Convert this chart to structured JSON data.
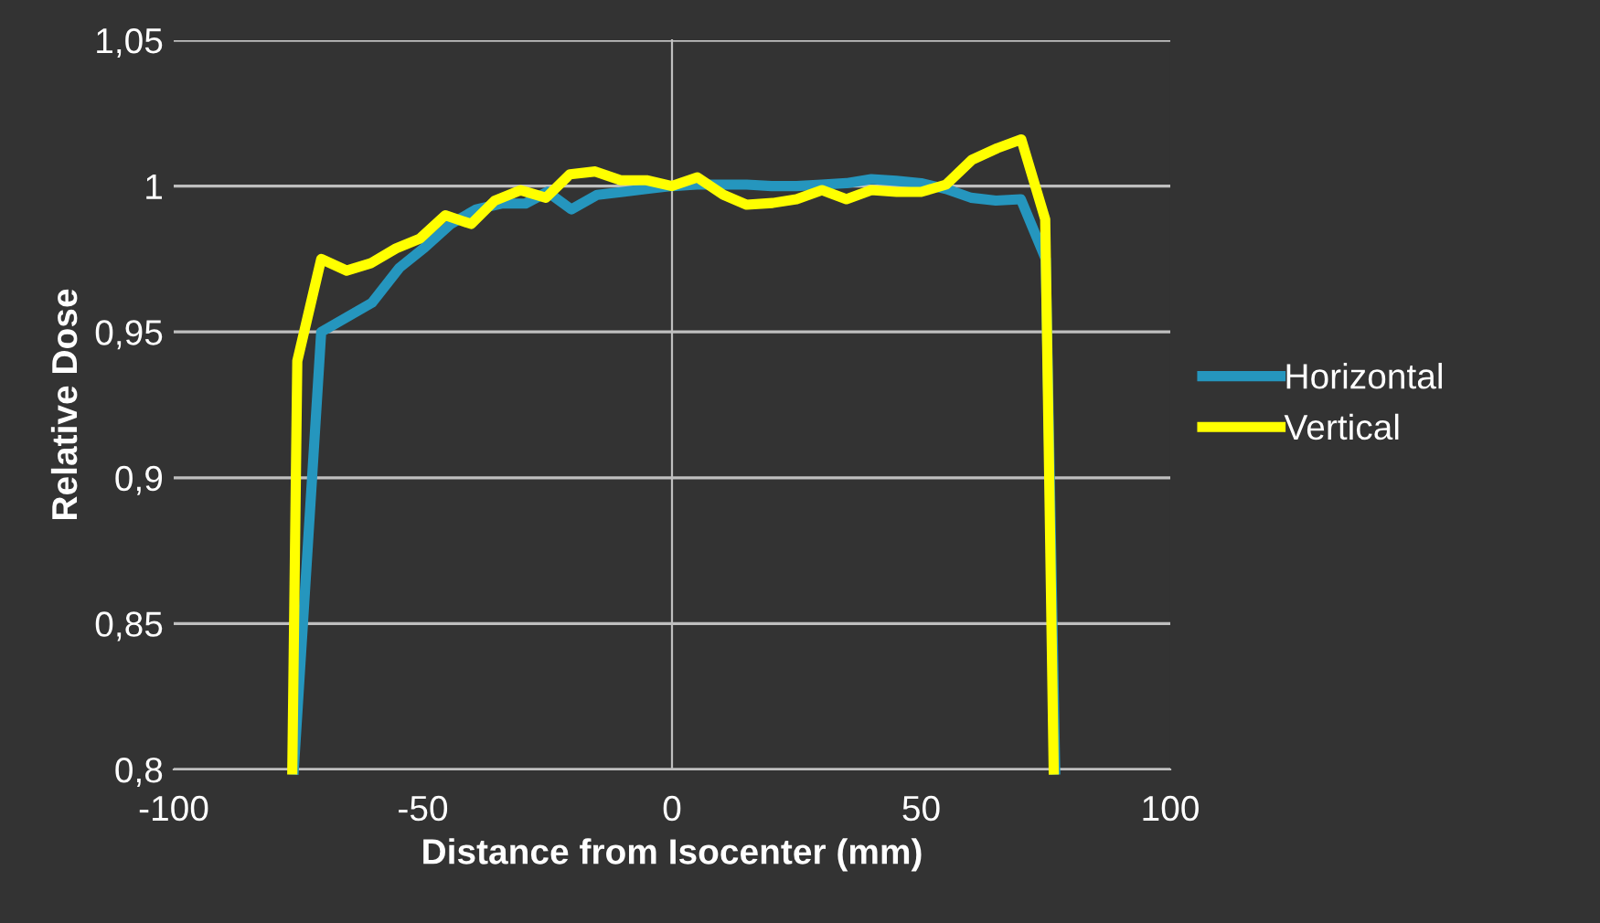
{
  "chart_data": {
    "type": "line",
    "xlabel": "Distance from Isocenter (mm)",
    "ylabel": "Relative Dose",
    "xlim": [
      -100,
      100
    ],
    "xticks": [
      -100,
      -50,
      0,
      50,
      100
    ],
    "ylim": [
      0.8,
      1.05
    ],
    "yticks": [
      {
        "value": 0.8,
        "label": "0,8"
      },
      {
        "value": 0.85,
        "label": "0,85"
      },
      {
        "value": 0.9,
        "label": "0,9"
      },
      {
        "value": 0.95,
        "label": "0,95"
      },
      {
        "value": 1,
        "label": "1"
      },
      {
        "value": 1.05,
        "label": "1,05"
      }
    ],
    "grid": "y",
    "legend": "right",
    "marker": "none",
    "line_style": "solid",
    "series": [
      {
        "name": "Horizontal",
        "color": "#2596be",
        "x": [
          -75.9,
          -70.4,
          -65.3,
          -60.2,
          -54.7,
          -49.6,
          -44.4,
          -39.3,
          -34.2,
          -29.4,
          -25,
          -20.2,
          -15,
          -9.9,
          -5.1,
          0,
          5,
          10.2,
          15,
          20,
          25,
          30,
          35,
          40,
          45,
          50,
          55,
          60,
          65,
          70,
          75,
          76.9
        ],
        "values": [
          0.8,
          0.95,
          0.955,
          0.96,
          0.972,
          0.979,
          0.987,
          0.992,
          0.994,
          0.994,
          0.998,
          0.992,
          0.997,
          0.998,
          0.999,
          1.0,
          1.0005,
          1.0005,
          1.0005,
          1.0,
          1.0,
          1.0005,
          1.001,
          1.0024,
          1.0018,
          1.001,
          0.999,
          0.996,
          0.995,
          0.9955,
          0.975,
          0.8
        ]
      },
      {
        "name": "Vertical",
        "color": "#ffff00",
        "x": [
          -76.2,
          -75.2,
          -70.4,
          -65.3,
          -60.5,
          -55.4,
          -50.6,
          -45.5,
          -40.3,
          -35.6,
          -30.4,
          -25.3,
          -20.5,
          -15.4,
          -10.3,
          -5.1,
          0,
          5.1,
          10.3,
          15,
          20.2,
          25,
          30.1,
          35,
          40,
          45.1,
          50,
          55,
          60.2,
          65.3,
          70.1,
          74.9,
          76.6
        ],
        "values": [
          0.8,
          0.94,
          0.975,
          0.971,
          0.9735,
          0.9786,
          0.982,
          0.99,
          0.987,
          0.995,
          0.9986,
          0.996,
          1.004,
          1.005,
          1.002,
          1.002,
          1.0,
          1.003,
          0.997,
          0.9936,
          0.9942,
          0.9955,
          0.9986,
          0.9955,
          0.9986,
          0.998,
          0.998,
          1.0005,
          1.009,
          1.013,
          1.016,
          0.9886,
          0.8
        ]
      }
    ]
  }
}
